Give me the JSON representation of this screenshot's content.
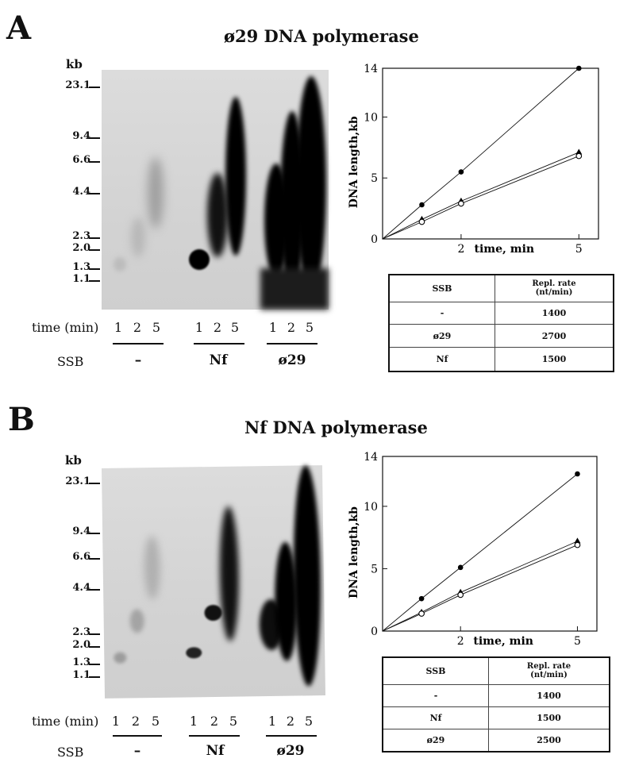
{
  "panels": [
    {
      "letter": "A",
      "title": "ø29 DNA polymerase",
      "gel": {
        "unit": "kb",
        "markers": [
          "23.1",
          "9.4",
          "6.6",
          "4.4",
          "2.3",
          "2.0",
          "1.3",
          "1.1"
        ],
        "row_time_label": "time (min)",
        "row_ssb_label": "SSB",
        "groups": [
          {
            "ssb": "–",
            "times": [
              "1",
              "2",
              "5"
            ]
          },
          {
            "ssb": "Nf",
            "times": [
              "1",
              "2",
              "5"
            ]
          },
          {
            "ssb": "ø29",
            "times": [
              "1",
              "2",
              "5"
            ]
          }
        ]
      },
      "table": {
        "header": [
          "SSB",
          "Repl. rate",
          "(nt/min)"
        ],
        "rows": [
          [
            "-",
            "1400"
          ],
          [
            "ø29",
            "2700"
          ],
          [
            "Nf",
            "1500"
          ]
        ]
      }
    },
    {
      "letter": "B",
      "title": "Nf DNA polymerase",
      "gel": {
        "unit": "kb",
        "markers": [
          "23.1",
          "9.4",
          "6.6",
          "4.4",
          "2.3",
          "2.0",
          "1.3",
          "1.1"
        ],
        "row_time_label": "time (min)",
        "row_ssb_label": "SSB",
        "groups": [
          {
            "ssb": "–",
            "times": [
              "1",
              "2",
              "5"
            ]
          },
          {
            "ssb": "Nf",
            "times": [
              "1",
              "2",
              "5"
            ]
          },
          {
            "ssb": "ø29",
            "times": [
              "1",
              "2",
              "5"
            ]
          }
        ]
      },
      "table": {
        "header": [
          "SSB",
          "Repl. rate",
          "(nt/min)"
        ],
        "rows": [
          [
            "-",
            "1400"
          ],
          [
            "Nf",
            "1500"
          ],
          [
            "ø29",
            "2500"
          ]
        ]
      }
    }
  ],
  "chart_data": [
    {
      "type": "line",
      "title": "",
      "xlabel": "time, min",
      "ylabel": "DNA length,kb",
      "xlim": [
        0,
        5.5
      ],
      "ylim": [
        0,
        14
      ],
      "xticks": [
        "2",
        "5"
      ],
      "yticks": [
        "0",
        "5",
        "10",
        "14"
      ],
      "series": [
        {
          "marker": "filled-circle",
          "x": [
            0,
            1,
            2,
            5
          ],
          "y": [
            0,
            2.8,
            5.5,
            14.0
          ]
        },
        {
          "marker": "filled-triangle",
          "x": [
            0,
            1,
            2,
            5
          ],
          "y": [
            0,
            1.6,
            3.1,
            7.1
          ]
        },
        {
          "marker": "open-circle",
          "x": [
            0,
            1,
            2,
            5
          ],
          "y": [
            0,
            1.4,
            2.9,
            6.8
          ]
        }
      ]
    },
    {
      "type": "line",
      "title": "",
      "xlabel": "time, min",
      "ylabel": "DNA length,kb",
      "xlim": [
        0,
        5.5
      ],
      "ylim": [
        0,
        14
      ],
      "xticks": [
        "2",
        "5"
      ],
      "yticks": [
        "0",
        "5",
        "10",
        "14"
      ],
      "series": [
        {
          "marker": "filled-circle",
          "x": [
            0,
            1,
            2,
            5
          ],
          "y": [
            0,
            2.6,
            5.1,
            12.6
          ]
        },
        {
          "marker": "filled-triangle",
          "x": [
            0,
            1,
            2,
            5
          ],
          "y": [
            0,
            1.5,
            3.1,
            7.2
          ]
        },
        {
          "marker": "open-circle",
          "x": [
            0,
            1,
            2,
            5
          ],
          "y": [
            0,
            1.4,
            2.9,
            6.9
          ]
        }
      ]
    }
  ]
}
